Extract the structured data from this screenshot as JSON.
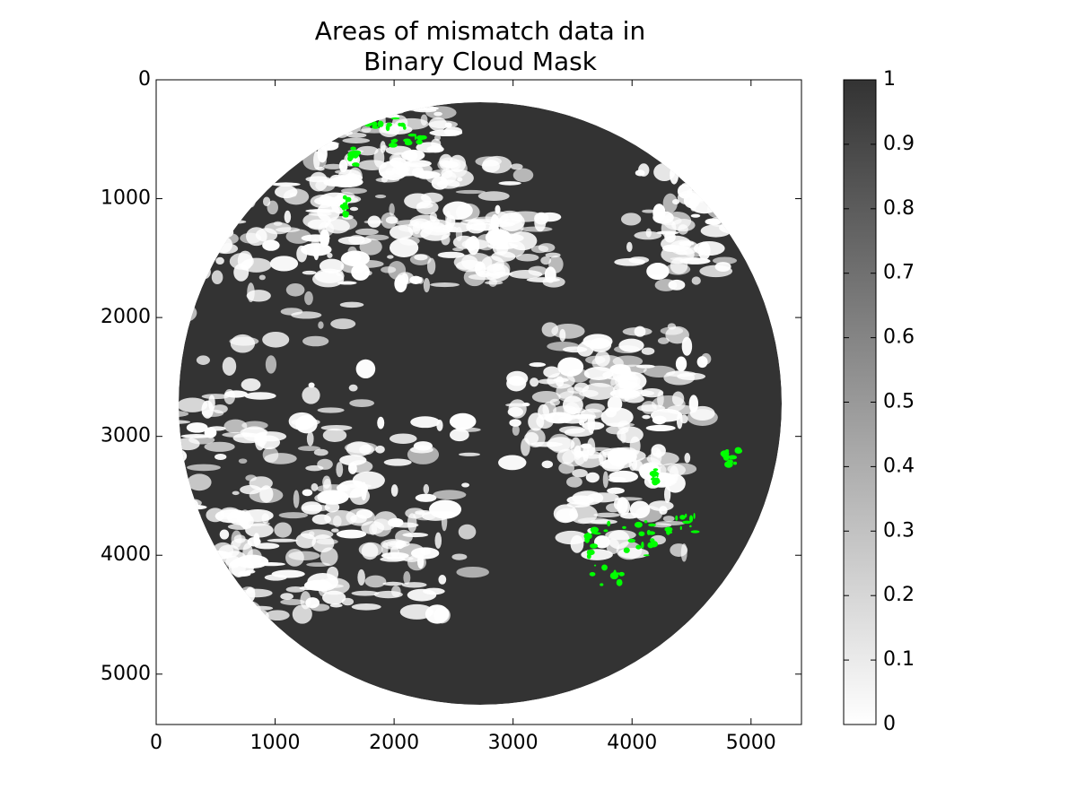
{
  "chart_data": {
    "type": "image",
    "title_lines": [
      "Areas of mismatch data in",
      "Binary Cloud Mask"
    ],
    "xlim": [
      0,
      5424
    ],
    "xticks": [
      0,
      1000,
      2000,
      3000,
      4000,
      5000
    ],
    "ylim": [
      5424,
      0
    ],
    "yticks": [
      0,
      1000,
      2000,
      3000,
      4000,
      5000
    ],
    "colormap": [
      "#ffffff",
      "#333333"
    ],
    "clim": [
      0,
      1
    ],
    "cticks": [
      0,
      0.1,
      0.2,
      0.3,
      0.4,
      0.5,
      0.6,
      0.7,
      0.8,
      0.9,
      1
    ],
    "mismatch_color": "#00ff00"
  }
}
